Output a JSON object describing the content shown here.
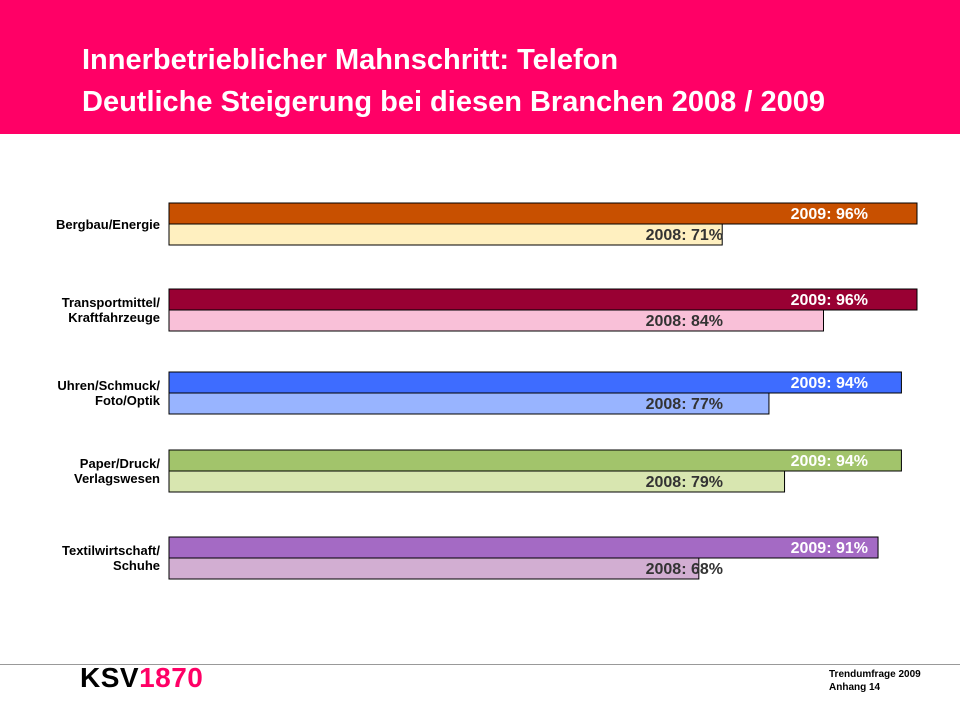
{
  "header": {
    "title_line1": "Innerbetrieblicher Mahnschritt: Telefon",
    "title_line2": "Deutliche Steigerung bei diesen Branchen 2008 / 2009"
  },
  "chart_data": {
    "type": "bar",
    "orientation": "horizontal",
    "categories": [
      [
        "Bergbau/Energie"
      ],
      [
        "Transportmittel/",
        "Kraftfahrzeuge"
      ],
      [
        "Uhren/Schmuck/",
        "Foto/Optik"
      ],
      [
        "Paper/Druck/",
        "Verlagswesen"
      ],
      [
        "Textilwirtschaft/",
        "Schuhe"
      ]
    ],
    "series": [
      {
        "name": "2009",
        "values": [
          96,
          96,
          94,
          94,
          91
        ],
        "labels": [
          "2009: 96%",
          "2009: 96%",
          "2009: 94%",
          "2009: 94%",
          "2009: 91%"
        ],
        "colors": [
          "#c85000",
          "#990033",
          "#3e6cff",
          "#a2c46b",
          "#a46ac4"
        ]
      },
      {
        "name": "2008",
        "values": [
          71,
          84,
          77,
          79,
          68
        ],
        "labels": [
          "2008: 71%",
          "2008: 84%",
          "2008: 77%",
          "2008: 79%",
          "2008: 68%"
        ],
        "colors": [
          "#fff0c0",
          "#f9c0d8",
          "#98b4ff",
          "#d8e6b0",
          "#d2aed2"
        ]
      }
    ],
    "value_unit": "%",
    "xlim": [
      0,
      96
    ],
    "grid": false,
    "legend": "none",
    "title": "",
    "xlabel": "",
    "ylabel": "",
    "label_colors": {
      "2009": "#ffffff",
      "2008": "#333333"
    }
  },
  "footer": {
    "logo_text": "KSV",
    "logo_number": "1870",
    "line1": "Trendumfrage 2009",
    "line2": "Anhang 14"
  },
  "colors": {
    "brand": "#ff0066"
  }
}
